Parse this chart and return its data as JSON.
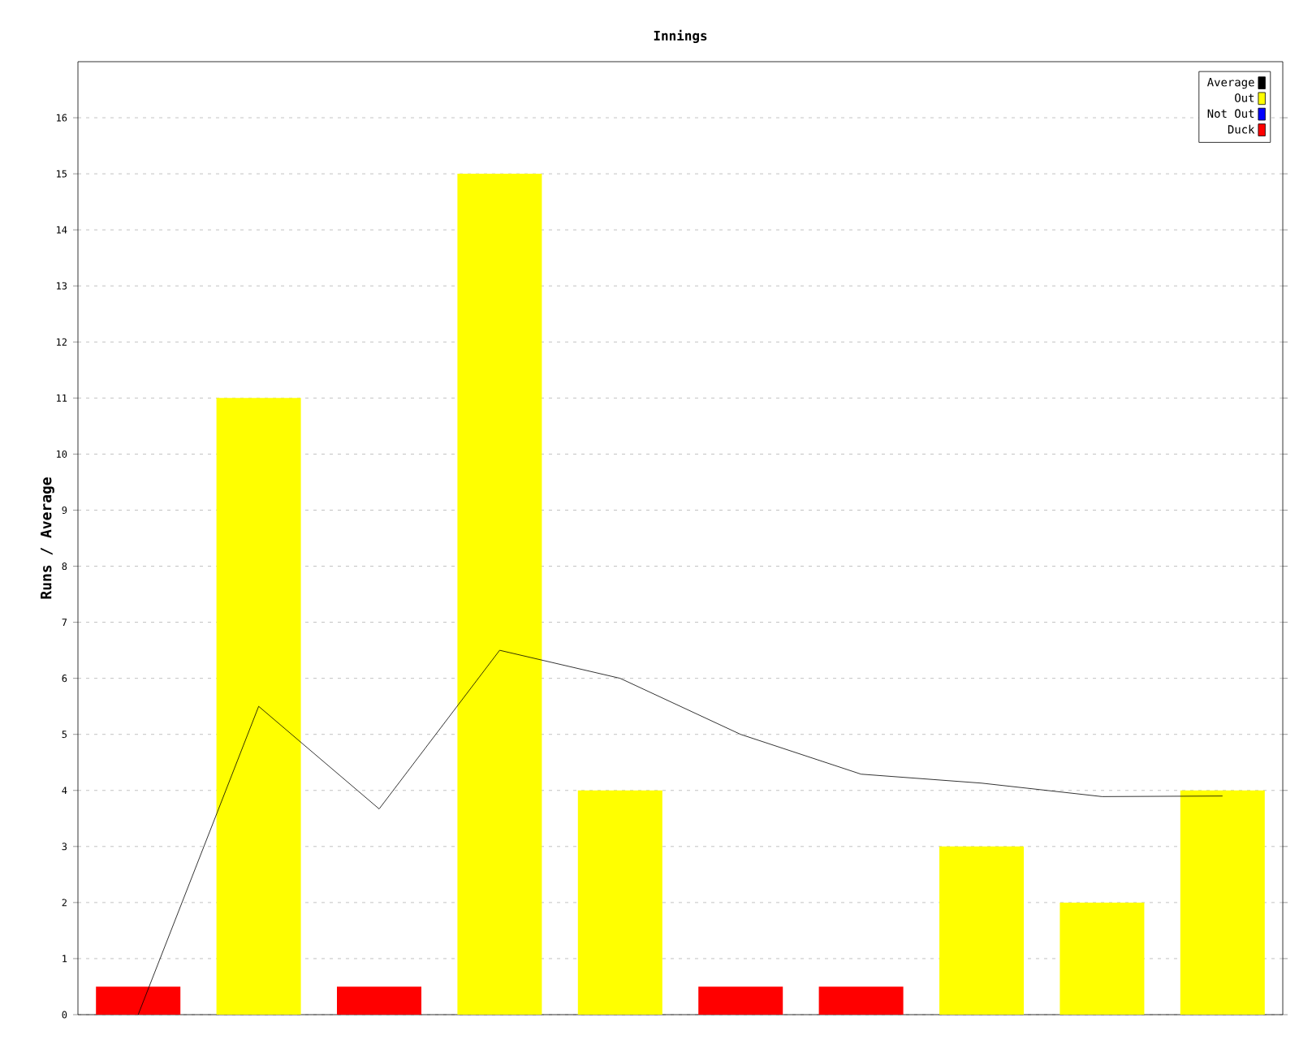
{
  "chart_data": {
    "type": "bar",
    "title": "Innings",
    "ylabel": "Runs / Average",
    "categories": [
      null,
      null,
      null,
      null,
      null,
      null,
      null,
      null,
      null,
      null
    ],
    "series": [
      {
        "name": "Average",
        "type": "line",
        "color": "#000000",
        "values": [
          0,
          5.5,
          3.67,
          6.5,
          6,
          5,
          4.29,
          4.13,
          3.89,
          3.9
        ]
      },
      {
        "name": "Out",
        "color": "#ffff00",
        "values": [
          null,
          11,
          null,
          15,
          4,
          null,
          null,
          3,
          2,
          4
        ]
      },
      {
        "name": "Not Out",
        "color": "#0000ff",
        "values": [
          null,
          null,
          null,
          null,
          null,
          null,
          null,
          null,
          null,
          null
        ]
      },
      {
        "name": "Duck",
        "color": "#ff0000",
        "values": [
          0.5,
          null,
          0.5,
          null,
          null,
          0.5,
          0.5,
          null,
          null,
          null
        ]
      }
    ],
    "ylim": [
      0,
      17
    ],
    "yticks": [
      0,
      1,
      2,
      3,
      4,
      5,
      6,
      7,
      8,
      9,
      10,
      11,
      12,
      13,
      14,
      15,
      16
    ],
    "grid": "y",
    "legend": "top right",
    "marker": "none",
    "line_style": "solid"
  }
}
